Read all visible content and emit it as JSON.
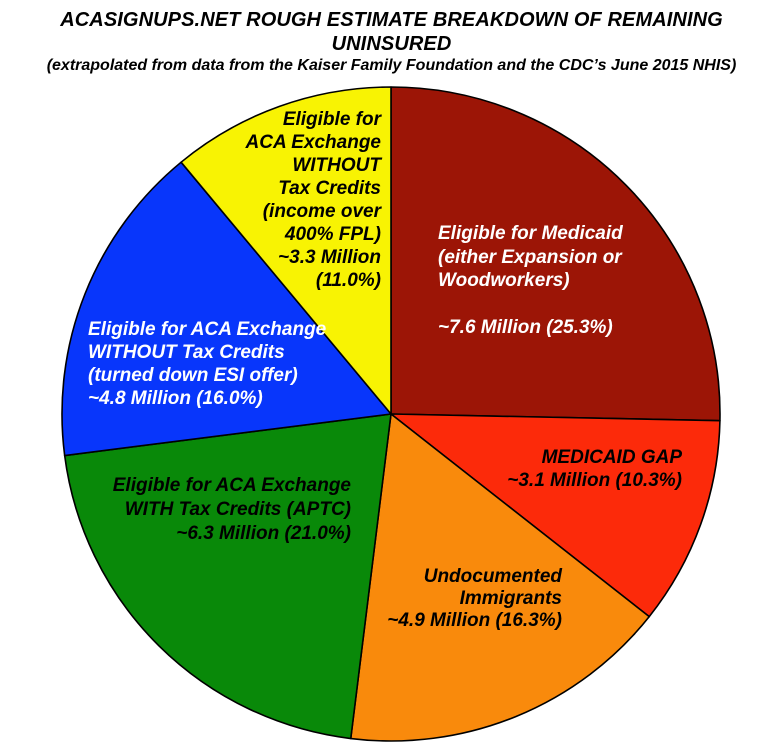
{
  "header": {
    "title": "ACASIGNUPS.NET ROUGH ESTIMATE BREAKDOWN OF REMAINING UNINSURED",
    "subtitle": "(extrapolated from data from the Kaiser Family Foundation and the CDC’s June 2015 NHIS)"
  },
  "chart_data": {
    "type": "pie",
    "title": "ACASIGNUPS.NET ROUGH ESTIMATE BREAKDOWN OF REMAINING UNINSURED",
    "subtitle": "(extrapolated from data from the Kaiser Family Foundation and the CDC’s June 2015 NHIS)",
    "units": "millions of people",
    "direction": "clockwise",
    "start_angle": "12 o'clock",
    "outline_color": "#000000",
    "background_color": "#ffffff",
    "slices": [
      {
        "id": "medicaid-eligible",
        "category": "Eligible for Medicaid (either Expansion or Woodworkers)",
        "value_millions": 7.6,
        "value_label": "~7.6 Million",
        "percent": 25.3,
        "color": "#9C1506",
        "text_color": "#FFFFFF",
        "label": "Eligible for Medicaid\n(either Expansion or\nWoodworkers)\n\n~7.6 Million (25.3%)"
      },
      {
        "id": "medicaid-gap",
        "category": "Medicaid Gap",
        "value_millions": 3.1,
        "value_label": "~3.1 Million",
        "percent": 10.3,
        "color": "#FC2A0A",
        "text_color": "#000000",
        "label": "MEDICAID GAP\n~3.1 Million (10.3%)"
      },
      {
        "id": "undocumented-immigrants",
        "category": "Undocumented Immigrants",
        "value_millions": 4.9,
        "value_label": "~4.9 Million",
        "percent": 16.3,
        "color": "#F98A0C",
        "text_color": "#000000",
        "label": "Undocumented\nImmigrants\n~4.9 Million (16.3%)"
      },
      {
        "id": "exchange-with-tax-credits",
        "category": "Eligible for ACA Exchange WITH Tax Credits (APTC)",
        "value_millions": 6.3,
        "value_label": "~6.3 Million",
        "percent": 21.0,
        "color": "#098909",
        "text_color": "#000000",
        "label": "Eligible for ACA Exchange\nWITH Tax Credits (APTC)\n~6.3 Million (21.0%)"
      },
      {
        "id": "exchange-without-tax-credits-esi",
        "category": "Eligible for ACA Exchange WITHOUT Tax Credits (turned down ESI offer)",
        "value_millions": 4.8,
        "value_label": "~4.8 Million",
        "percent": 16.0,
        "color": "#0836FB",
        "text_color": "#FFFFFF",
        "label": "Eligible for ACA Exchange\nWITHOUT Tax Credits\n(turned down ESI offer)\n~4.8 Million (16.0%)"
      },
      {
        "id": "exchange-without-tax-credits-400fpl",
        "category": "Eligible for ACA Exchange WITHOUT Tax Credits (income over 400% FPL)",
        "value_millions": 3.3,
        "value_label": "~3.3 Million",
        "percent": 11.0,
        "color": "#F8F303",
        "text_color": "#000000",
        "label": "Eligible for\nACA Exchange\nWITHOUT\nTax Credits\n(income over\n400% FPL)\n~3.3 Million\n(11.0%)"
      }
    ]
  }
}
